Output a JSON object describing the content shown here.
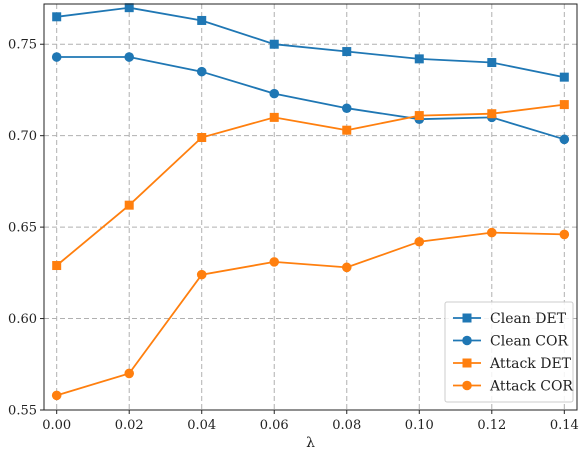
{
  "chart_data": {
    "type": "line",
    "title": "",
    "xlabel": "λ",
    "ylabel": "",
    "x": [
      0.0,
      0.02,
      0.04,
      0.06,
      0.08,
      0.1,
      0.12,
      0.14
    ],
    "x_tick_labels": [
      "0.00",
      "0.02",
      "0.04",
      "0.06",
      "0.08",
      "0.10",
      "0.12",
      "0.14"
    ],
    "y_ticks": [
      0.55,
      0.6,
      0.65,
      0.7,
      0.75
    ],
    "y_tick_labels": [
      "0.55",
      "0.60",
      "0.65",
      "0.70",
      "0.75"
    ],
    "xlim": [
      -0.0035,
      0.1435
    ],
    "ylim": [
      0.55,
      0.772
    ],
    "grid": true,
    "legend_position": "bottom-right",
    "series": [
      {
        "name": "Clean DET",
        "marker": "square",
        "color": "#1f77b4",
        "values": [
          0.765,
          0.77,
          0.763,
          0.75,
          0.746,
          0.742,
          0.74,
          0.732
        ]
      },
      {
        "name": "Clean COR",
        "marker": "circle",
        "color": "#1f77b4",
        "values": [
          0.743,
          0.743,
          0.735,
          0.723,
          0.715,
          0.709,
          0.71,
          0.698
        ]
      },
      {
        "name": "Attack DET",
        "marker": "square",
        "color": "#ff7f0e",
        "values": [
          0.629,
          0.662,
          0.699,
          0.71,
          0.703,
          0.711,
          0.712,
          0.717
        ]
      },
      {
        "name": "Attack COR",
        "marker": "circle",
        "color": "#ff7f0e",
        "values": [
          0.558,
          0.57,
          0.624,
          0.631,
          0.628,
          0.642,
          0.647,
          0.646
        ]
      }
    ]
  }
}
